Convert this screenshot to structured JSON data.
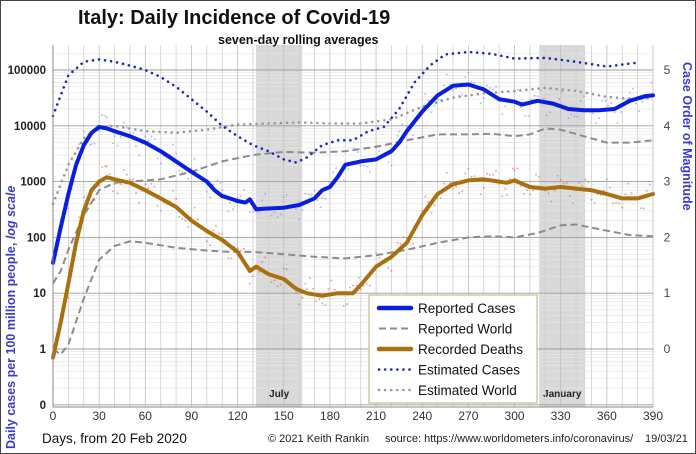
{
  "chart_data": {
    "type": "line",
    "title": "Italy: Daily Incidence of Covid-19",
    "subtitle": "seven-day rolling averages",
    "xlabel": "Days, from 20 Feb 2020",
    "ylabel_main": "Daily cases per 100 million people, ",
    "ylabel_italic": "log scale",
    "ylabel_right": "Case Order of Magnitude",
    "xlim": [
      0,
      390
    ],
    "ylim_log10": [
      -1,
      5.3
    ],
    "y_scale": "log",
    "grid": true,
    "legend_position": "bottom-center",
    "x_ticks": [
      0,
      30,
      60,
      90,
      120,
      150,
      180,
      210,
      240,
      270,
      300,
      330,
      360,
      390
    ],
    "y_ticks": [
      {
        "value": 100000,
        "label": "100000"
      },
      {
        "value": 10000,
        "label": "10000"
      },
      {
        "value": 1000,
        "label": "1000"
      },
      {
        "value": 100,
        "label": "100"
      },
      {
        "value": 10,
        "label": "10"
      },
      {
        "value": 1,
        "label": "1"
      },
      {
        "value": 0.1,
        "label": "0"
      }
    ],
    "y_right_ticks": [
      "0",
      "1",
      "2",
      "3",
      "4",
      "5"
    ],
    "shaded_bands": [
      {
        "label": "July",
        "start": 132,
        "end": 162
      },
      {
        "label": "January",
        "start": 316,
        "end": 346
      }
    ],
    "series": [
      {
        "name": "Reported Cases",
        "style": "solid-thick",
        "color": "#0a1ee0",
        "points": [
          [
            0,
            35
          ],
          [
            5,
            150
          ],
          [
            10,
            600
          ],
          [
            15,
            2000
          ],
          [
            20,
            4500
          ],
          [
            25,
            7500
          ],
          [
            30,
            9500
          ],
          [
            35,
            9000
          ],
          [
            40,
            8000
          ],
          [
            50,
            6500
          ],
          [
            60,
            5000
          ],
          [
            70,
            3500
          ],
          [
            80,
            2300
          ],
          [
            90,
            1500
          ],
          [
            100,
            1000
          ],
          [
            105,
            700
          ],
          [
            110,
            550
          ],
          [
            115,
            500
          ],
          [
            120,
            450
          ],
          [
            125,
            420
          ],
          [
            128,
            480
          ],
          [
            132,
            320
          ],
          [
            140,
            330
          ],
          [
            150,
            340
          ],
          [
            160,
            380
          ],
          [
            170,
            500
          ],
          [
            175,
            700
          ],
          [
            180,
            800
          ],
          [
            185,
            1200
          ],
          [
            190,
            2000
          ],
          [
            200,
            2300
          ],
          [
            210,
            2500
          ],
          [
            220,
            3500
          ],
          [
            225,
            5000
          ],
          [
            230,
            8000
          ],
          [
            240,
            18000
          ],
          [
            250,
            35000
          ],
          [
            260,
            52000
          ],
          [
            270,
            55000
          ],
          [
            280,
            45000
          ],
          [
            290,
            30000
          ],
          [
            300,
            27000
          ],
          [
            305,
            24000
          ],
          [
            315,
            28000
          ],
          [
            325,
            25000
          ],
          [
            335,
            20000
          ],
          [
            345,
            19000
          ],
          [
            355,
            19000
          ],
          [
            365,
            20000
          ],
          [
            375,
            28000
          ],
          [
            385,
            34000
          ],
          [
            390,
            35000
          ]
        ]
      },
      {
        "name": "Reported World",
        "style": "dashed",
        "color": "#8c8c8c",
        "points": [
          [
            0,
            15
          ],
          [
            5,
            25
          ],
          [
            10,
            60
          ],
          [
            20,
            250
          ],
          [
            30,
            700
          ],
          [
            40,
            950
          ],
          [
            50,
            1000
          ],
          [
            70,
            1100
          ],
          [
            90,
            1500
          ],
          [
            110,
            2300
          ],
          [
            130,
            3000
          ],
          [
            150,
            3400
          ],
          [
            170,
            3300
          ],
          [
            190,
            3500
          ],
          [
            210,
            4200
          ],
          [
            230,
            5500
          ],
          [
            250,
            7000
          ],
          [
            270,
            7000
          ],
          [
            285,
            7200
          ],
          [
            300,
            6500
          ],
          [
            310,
            7000
          ],
          [
            320,
            9000
          ],
          [
            330,
            8500
          ],
          [
            345,
            6500
          ],
          [
            360,
            5000
          ],
          [
            375,
            5000
          ],
          [
            390,
            5500
          ]
        ]
      },
      {
        "name": "Reported World (deaths)",
        "style": "dashed",
        "color": "#8c8c8c",
        "in_legend": false,
        "points": [
          [
            0,
            1
          ],
          [
            5,
            0.8
          ],
          [
            10,
            1.2
          ],
          [
            20,
            8
          ],
          [
            30,
            40
          ],
          [
            40,
            70
          ],
          [
            50,
            85
          ],
          [
            60,
            80
          ],
          [
            80,
            65
          ],
          [
            100,
            58
          ],
          [
            115,
            55
          ],
          [
            130,
            55
          ],
          [
            150,
            50
          ],
          [
            170,
            45
          ],
          [
            190,
            42
          ],
          [
            210,
            48
          ],
          [
            230,
            60
          ],
          [
            250,
            80
          ],
          [
            270,
            100
          ],
          [
            285,
            105
          ],
          [
            300,
            100
          ],
          [
            315,
            120
          ],
          [
            330,
            165
          ],
          [
            340,
            170
          ],
          [
            355,
            140
          ],
          [
            375,
            110
          ],
          [
            390,
            105
          ]
        ]
      },
      {
        "name": "Recorded Deaths",
        "style": "solid-thick",
        "color": "#a8700f",
        "points": [
          [
            0,
            0.7
          ],
          [
            5,
            3
          ],
          [
            10,
            15
          ],
          [
            15,
            80
          ],
          [
            20,
            300
          ],
          [
            25,
            700
          ],
          [
            30,
            1000
          ],
          [
            35,
            1200
          ],
          [
            40,
            1100
          ],
          [
            50,
            950
          ],
          [
            60,
            700
          ],
          [
            70,
            500
          ],
          [
            80,
            350
          ],
          [
            90,
            200
          ],
          [
            100,
            130
          ],
          [
            110,
            90
          ],
          [
            120,
            55
          ],
          [
            128,
            25
          ],
          [
            132,
            30
          ],
          [
            140,
            22
          ],
          [
            150,
            18
          ],
          [
            158,
            12
          ],
          [
            165,
            10
          ],
          [
            175,
            9
          ],
          [
            185,
            10
          ],
          [
            195,
            10
          ],
          [
            200,
            14
          ],
          [
            210,
            30
          ],
          [
            220,
            45
          ],
          [
            230,
            80
          ],
          [
            240,
            250
          ],
          [
            250,
            600
          ],
          [
            260,
            900
          ],
          [
            270,
            1050
          ],
          [
            280,
            1100
          ],
          [
            290,
            1000
          ],
          [
            295,
            950
          ],
          [
            300,
            1050
          ],
          [
            310,
            800
          ],
          [
            320,
            750
          ],
          [
            330,
            800
          ],
          [
            340,
            750
          ],
          [
            350,
            700
          ],
          [
            360,
            600
          ],
          [
            370,
            500
          ],
          [
            380,
            500
          ],
          [
            390,
            600
          ]
        ]
      },
      {
        "name": "Estimated Cases",
        "style": "dotted",
        "color": "#1f2bb5",
        "points": [
          [
            0,
            15000
          ],
          [
            5,
            35000
          ],
          [
            10,
            80000
          ],
          [
            20,
            140000
          ],
          [
            30,
            155000
          ],
          [
            40,
            140000
          ],
          [
            50,
            120000
          ],
          [
            60,
            100000
          ],
          [
            70,
            75000
          ],
          [
            80,
            50000
          ],
          [
            90,
            30000
          ],
          [
            100,
            18000
          ],
          [
            110,
            10000
          ],
          [
            120,
            6500
          ],
          [
            130,
            4500
          ],
          [
            140,
            3500
          ],
          [
            150,
            2500
          ],
          [
            158,
            2200
          ],
          [
            165,
            2700
          ],
          [
            175,
            4500
          ],
          [
            185,
            5500
          ],
          [
            195,
            5500
          ],
          [
            205,
            8000
          ],
          [
            215,
            9500
          ],
          [
            225,
            20000
          ],
          [
            235,
            60000
          ],
          [
            245,
            120000
          ],
          [
            255,
            190000
          ],
          [
            270,
            210000
          ],
          [
            285,
            195000
          ],
          [
            300,
            160000
          ],
          [
            320,
            165000
          ],
          [
            340,
            140000
          ],
          [
            360,
            115000
          ],
          [
            375,
            130000
          ],
          [
            380,
            135000
          ]
        ]
      },
      {
        "name": "Estimated World",
        "style": "dotted",
        "color": "#999999",
        "points": [
          [
            0,
            400
          ],
          [
            10,
            2000
          ],
          [
            20,
            6000
          ],
          [
            30,
            9500
          ],
          [
            40,
            10000
          ],
          [
            60,
            8000
          ],
          [
            80,
            7500
          ],
          [
            100,
            8500
          ],
          [
            120,
            10500
          ],
          [
            140,
            11000
          ],
          [
            160,
            11500
          ],
          [
            180,
            11000
          ],
          [
            200,
            11000
          ],
          [
            220,
            13000
          ],
          [
            240,
            22000
          ],
          [
            260,
            32000
          ],
          [
            280,
            38000
          ],
          [
            300,
            42000
          ],
          [
            320,
            48000
          ],
          [
            340,
            42000
          ],
          [
            360,
            33000
          ],
          [
            380,
            30000
          ],
          [
            390,
            32000
          ]
        ]
      }
    ],
    "legend": [
      {
        "label": "Reported Cases",
        "style": "solid-thick",
        "color": "#0a1ee0"
      },
      {
        "label": "Reported World",
        "style": "dashed",
        "color": "#8c8c8c"
      },
      {
        "label": "Recorded Deaths",
        "style": "solid-thick",
        "color": "#a8700f"
      },
      {
        "label": "Estimated Cases",
        "style": "dotted",
        "color": "#1f2bb5"
      },
      {
        "label": "Estimated World",
        "style": "dotted",
        "color": "#999999"
      }
    ]
  },
  "footer": {
    "copyright": "© 2021  Keith Rankin",
    "source": "source:  https://www.worldometers.info/coronavirus/",
    "date": "19/03/21"
  }
}
